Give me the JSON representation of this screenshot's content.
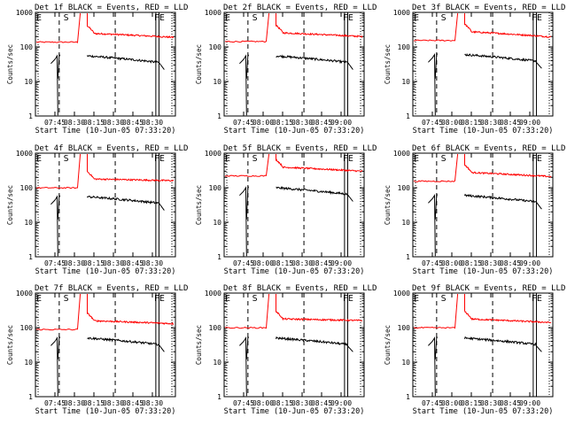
{
  "colors": {
    "events": "#000000",
    "lld": "#ff0000",
    "axis": "#000000",
    "background": "#ffffff"
  },
  "chart_data": {
    "type": "line",
    "yscale": "log",
    "ylim": [
      1,
      1000
    ],
    "ylabel": "Counts/sec",
    "xlabel": "Start Time (10-Jun-05 07:33:20)",
    "y_ticks": [
      "1000",
      "100",
      "10",
      "1"
    ],
    "tick_label_sets": {
      "a": [
        "07:45",
        "08:30",
        "08:15",
        "08:30",
        "08:45",
        "08:30"
      ],
      "b": [
        "07:45",
        "08:00",
        "08:15",
        "08:30",
        "08:45",
        "09:00"
      ],
      "c": [
        "07:45",
        "08:00",
        "08:15",
        "08:30",
        "08:45",
        "09:00"
      ]
    },
    "markers": {
      "E": "E",
      "S": "S",
      "FE": "FE"
    },
    "panels": [
      {
        "title": "Det 1f BLACK = Events, RED = LLD",
        "ticks": "a",
        "events": 55,
        "lld": 250,
        "end": 190,
        "spike": 12
      },
      {
        "title": "Det 2f BLACK = Events, RED = LLD",
        "ticks": "b",
        "events": 55,
        "lld": 260,
        "end": 200,
        "spike": 12
      },
      {
        "title": "Det 3f BLACK = Events, RED = LLD",
        "ticks": "c",
        "events": 60,
        "lld": 280,
        "end": 195,
        "spike": 12
      },
      {
        "title": "Det 4f BLACK = Events, RED = LLD",
        "ticks": "a",
        "events": 55,
        "lld": 180,
        "end": 160,
        "spike": 12
      },
      {
        "title": "Det 5f BLACK = Events, RED = LLD",
        "ticks": "b",
        "events": 100,
        "lld": 400,
        "end": 300,
        "spike": 12
      },
      {
        "title": "Det 6f BLACK = Events, RED = LLD",
        "ticks": "c",
        "events": 60,
        "lld": 280,
        "end": 210,
        "spike": 12
      },
      {
        "title": "Det 7f BLACK = Events, RED = LLD",
        "ticks": "a",
        "events": 50,
        "lld": 160,
        "end": 130,
        "spike": 12
      },
      {
        "title": "Det 8f BLACK = Events, RED = LLD",
        "ticks": "b",
        "events": 50,
        "lld": 180,
        "end": 160,
        "spike": 12
      },
      {
        "title": "Det 9f BLACK = Events, RED = LLD",
        "ticks": "c",
        "events": 50,
        "lld": 180,
        "end": 140,
        "spike": 12
      }
    ]
  }
}
